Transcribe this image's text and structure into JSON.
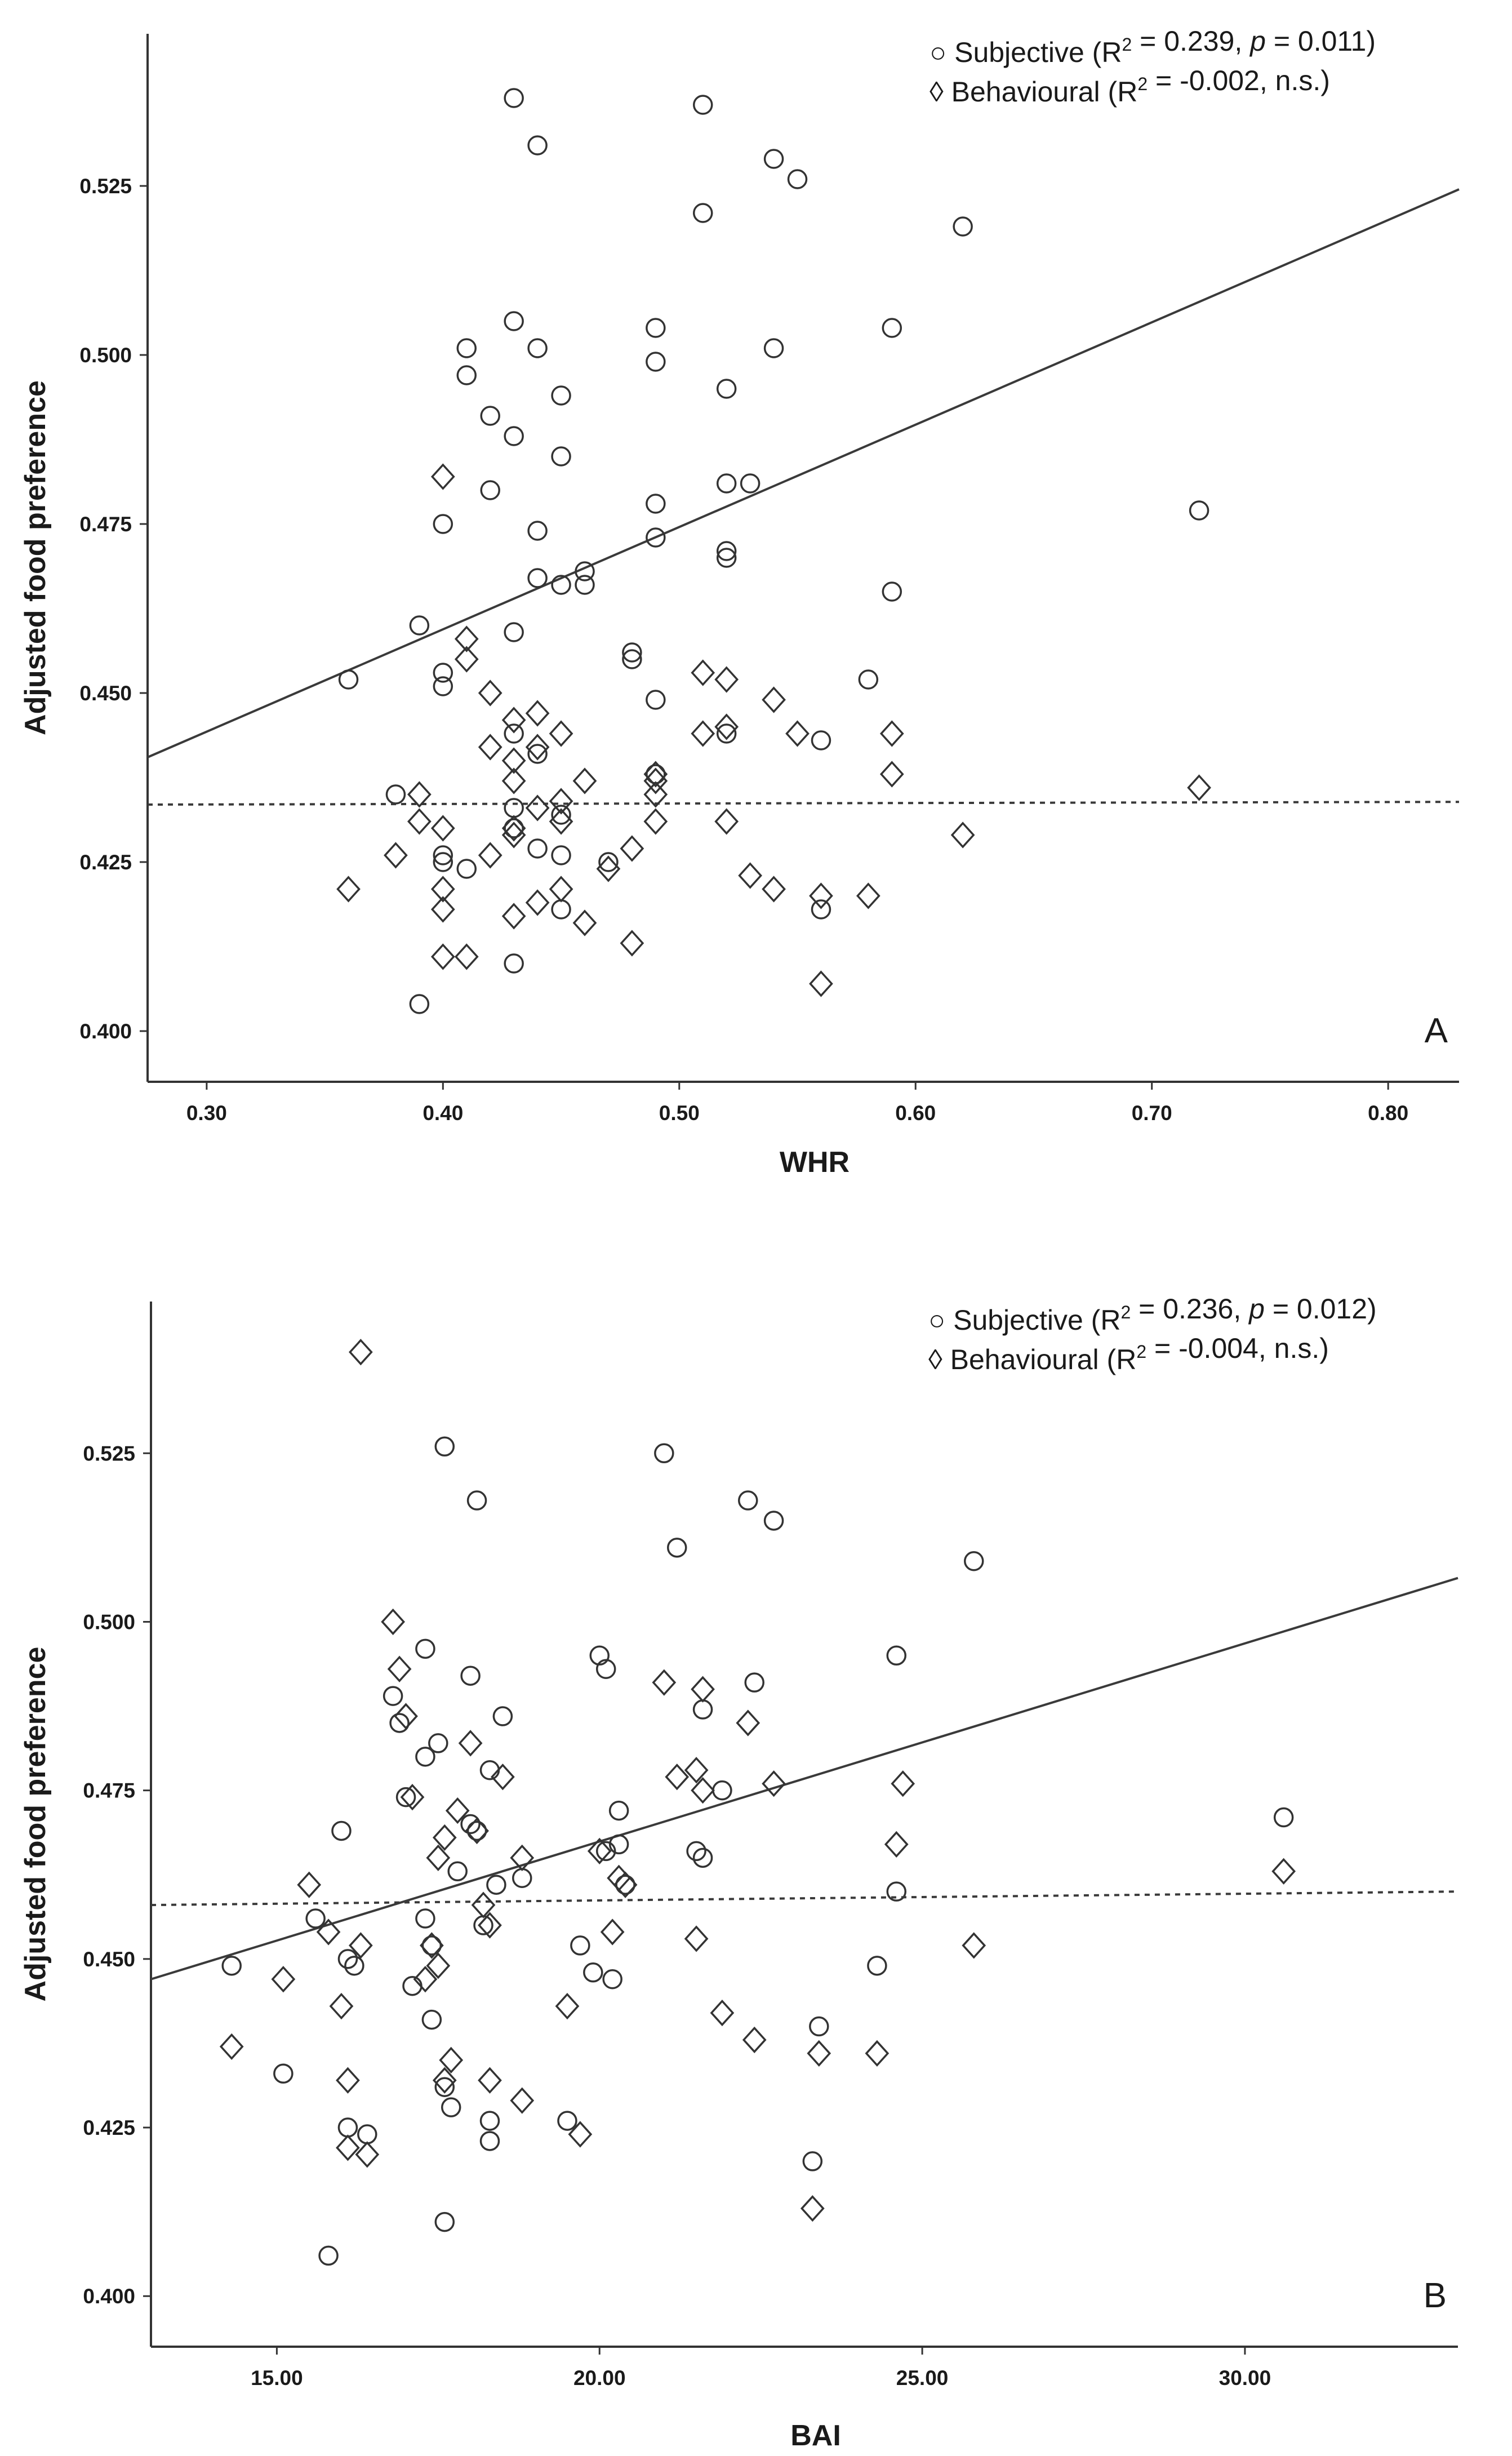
{
  "chart_data": [
    {
      "panel": "A",
      "type": "scatter",
      "xlabel": "WHR",
      "ylabel": "Adjusted food preference",
      "xlim": [
        0.275,
        0.83
      ],
      "ylim": [
        0.3925,
        0.5475
      ],
      "xticks": [
        "0.30",
        "0.40",
        "0.50",
        "0.60",
        "0.70",
        "0.80"
      ],
      "xtick_values": [
        0.3,
        0.4,
        0.5,
        0.6,
        0.7,
        0.8
      ],
      "yticks": [
        "0.400",
        "0.425",
        "0.450",
        "0.475",
        "0.500",
        "0.525"
      ],
      "ytick_values": [
        0.4,
        0.425,
        0.45,
        0.475,
        0.5,
        0.525
      ],
      "legend": {
        "position": "top-right",
        "entries": [
          {
            "marker": "○",
            "label": "Subjective (R",
            "sup": "2",
            "eq": " = 0.239, ",
            "italic": "p",
            "tail": " = 0.011)"
          },
          {
            "marker": "◊",
            "label": "Behavioural (R",
            "sup": "2",
            "eq": " = -0.002, n.s.)",
            "italic": "",
            "tail": ""
          }
        ]
      },
      "series": [
        {
          "name": "Subjective",
          "marker": "circle",
          "fit": {
            "style": "solid",
            "x": [
              0.275,
              0.83
            ],
            "y": [
              0.4405,
              0.5245
            ]
          },
          "points": [
            [
              0.36,
              0.452
            ],
            [
              0.38,
              0.435
            ],
            [
              0.39,
              0.46
            ],
            [
              0.39,
              0.404
            ],
            [
              0.4,
              0.453
            ],
            [
              0.4,
              0.451
            ],
            [
              0.4,
              0.426
            ],
            [
              0.4,
              0.425
            ],
            [
              0.4,
              0.475
            ],
            [
              0.41,
              0.501
            ],
            [
              0.41,
              0.497
            ],
            [
              0.41,
              0.424
            ],
            [
              0.42,
              0.491
            ],
            [
              0.42,
              0.48
            ],
            [
              0.43,
              0.538
            ],
            [
              0.43,
              0.505
            ],
            [
              0.43,
              0.488
            ],
            [
              0.43,
              0.459
            ],
            [
              0.43,
              0.444
            ],
            [
              0.43,
              0.433
            ],
            [
              0.43,
              0.43
            ],
            [
              0.43,
              0.41
            ],
            [
              0.44,
              0.531
            ],
            [
              0.44,
              0.501
            ],
            [
              0.44,
              0.474
            ],
            [
              0.44,
              0.467
            ],
            [
              0.44,
              0.441
            ],
            [
              0.44,
              0.427
            ],
            [
              0.45,
              0.494
            ],
            [
              0.45,
              0.485
            ],
            [
              0.45,
              0.466
            ],
            [
              0.45,
              0.432
            ],
            [
              0.45,
              0.426
            ],
            [
              0.45,
              0.418
            ],
            [
              0.46,
              0.468
            ],
            [
              0.46,
              0.466
            ],
            [
              0.47,
              0.425
            ],
            [
              0.48,
              0.456
            ],
            [
              0.48,
              0.455
            ],
            [
              0.49,
              0.504
            ],
            [
              0.49,
              0.499
            ],
            [
              0.49,
              0.478
            ],
            [
              0.49,
              0.473
            ],
            [
              0.49,
              0.449
            ],
            [
              0.49,
              0.438
            ],
            [
              0.51,
              0.537
            ],
            [
              0.51,
              0.521
            ],
            [
              0.52,
              0.495
            ],
            [
              0.52,
              0.481
            ],
            [
              0.52,
              0.471
            ],
            [
              0.52,
              0.47
            ],
            [
              0.52,
              0.444
            ],
            [
              0.53,
              0.481
            ],
            [
              0.54,
              0.529
            ],
            [
              0.54,
              0.501
            ],
            [
              0.55,
              0.526
            ],
            [
              0.56,
              0.443
            ],
            [
              0.56,
              0.418
            ],
            [
              0.58,
              0.452
            ],
            [
              0.59,
              0.504
            ],
            [
              0.59,
              0.465
            ],
            [
              0.62,
              0.519
            ],
            [
              0.72,
              0.477
            ]
          ]
        },
        {
          "name": "Behavioural",
          "marker": "diamond",
          "fit": {
            "style": "dashed",
            "x": [
              0.275,
              0.83
            ],
            "y": [
              0.4335,
              0.4339
            ]
          },
          "points": [
            [
              0.36,
              0.421
            ],
            [
              0.38,
              0.426
            ],
            [
              0.39,
              0.435
            ],
            [
              0.39,
              0.431
            ],
            [
              0.4,
              0.482
            ],
            [
              0.4,
              0.43
            ],
            [
              0.4,
              0.421
            ],
            [
              0.4,
              0.418
            ],
            [
              0.4,
              0.411
            ],
            [
              0.41,
              0.458
            ],
            [
              0.41,
              0.455
            ],
            [
              0.41,
              0.411
            ],
            [
              0.42,
              0.45
            ],
            [
              0.42,
              0.442
            ],
            [
              0.42,
              0.426
            ],
            [
              0.43,
              0.446
            ],
            [
              0.43,
              0.44
            ],
            [
              0.43,
              0.437
            ],
            [
              0.43,
              0.43
            ],
            [
              0.43,
              0.429
            ],
            [
              0.43,
              0.417
            ],
            [
              0.44,
              0.447
            ],
            [
              0.44,
              0.442
            ],
            [
              0.44,
              0.433
            ],
            [
              0.44,
              0.419
            ],
            [
              0.45,
              0.444
            ],
            [
              0.45,
              0.434
            ],
            [
              0.45,
              0.431
            ],
            [
              0.45,
              0.421
            ],
            [
              0.46,
              0.437
            ],
            [
              0.46,
              0.416
            ],
            [
              0.47,
              0.424
            ],
            [
              0.48,
              0.427
            ],
            [
              0.48,
              0.413
            ],
            [
              0.49,
              0.438
            ],
            [
              0.49,
              0.437
            ],
            [
              0.49,
              0.435
            ],
            [
              0.49,
              0.431
            ],
            [
              0.51,
              0.453
            ],
            [
              0.51,
              0.444
            ],
            [
              0.52,
              0.452
            ],
            [
              0.52,
              0.445
            ],
            [
              0.52,
              0.431
            ],
            [
              0.53,
              0.423
            ],
            [
              0.54,
              0.449
            ],
            [
              0.54,
              0.421
            ],
            [
              0.55,
              0.444
            ],
            [
              0.56,
              0.42
            ],
            [
              0.56,
              0.407
            ],
            [
              0.58,
              0.42
            ],
            [
              0.59,
              0.444
            ],
            [
              0.59,
              0.438
            ],
            [
              0.62,
              0.429
            ],
            [
              0.72,
              0.436
            ]
          ]
        }
      ]
    },
    {
      "panel": "B",
      "type": "scatter",
      "xlabel": "BAI",
      "ylabel": "Adjusted food preference",
      "xlim": [
        13.05,
        33.3
      ],
      "ylim": [
        0.3925,
        0.5475
      ],
      "xticks": [
        "15.00",
        "20.00",
        "25.00",
        "30.00"
      ],
      "xtick_values": [
        15,
        20,
        25,
        30
      ],
      "yticks": [
        "0.400",
        "0.425",
        "0.450",
        "0.475",
        "0.500",
        "0.525"
      ],
      "ytick_values": [
        0.4,
        0.425,
        0.45,
        0.475,
        0.5,
        0.525
      ],
      "legend": {
        "position": "top-right",
        "entries": [
          {
            "marker": "○",
            "label": "Subjective (R",
            "sup": "2",
            "eq": " = 0.236, ",
            "italic": "p",
            "tail": " = 0.012)"
          },
          {
            "marker": "◊",
            "label": "Behavioural (R",
            "sup": "2",
            "eq": " = -0.004, n.s.)",
            "italic": "",
            "tail": ""
          }
        ]
      },
      "series": [
        {
          "name": "Subjective",
          "marker": "circle",
          "fit": {
            "style": "solid",
            "x": [
              13.05,
              33.3
            ],
            "y": [
              0.447,
              0.5065
            ]
          },
          "points": [
            [
              14.3,
              0.449
            ],
            [
              15.1,
              0.433
            ],
            [
              15.6,
              0.456
            ],
            [
              15.8,
              0.406
            ],
            [
              16.0,
              0.469
            ],
            [
              16.1,
              0.45
            ],
            [
              16.1,
              0.425
            ],
            [
              16.2,
              0.449
            ],
            [
              16.4,
              0.424
            ],
            [
              16.8,
              0.489
            ],
            [
              16.9,
              0.485
            ],
            [
              17.0,
              0.474
            ],
            [
              17.1,
              0.446
            ],
            [
              17.3,
              0.496
            ],
            [
              17.3,
              0.48
            ],
            [
              17.3,
              0.456
            ],
            [
              17.4,
              0.452
            ],
            [
              17.4,
              0.441
            ],
            [
              17.5,
              0.482
            ],
            [
              17.6,
              0.526
            ],
            [
              17.6,
              0.411
            ],
            [
              17.6,
              0.431
            ],
            [
              17.7,
              0.428
            ],
            [
              17.8,
              0.463
            ],
            [
              18.0,
              0.492
            ],
            [
              18.0,
              0.47
            ],
            [
              18.1,
              0.518
            ],
            [
              18.1,
              0.469
            ],
            [
              18.2,
              0.455
            ],
            [
              18.3,
              0.478
            ],
            [
              18.3,
              0.426
            ],
            [
              18.3,
              0.423
            ],
            [
              18.4,
              0.461
            ],
            [
              18.5,
              0.486
            ],
            [
              18.8,
              0.462
            ],
            [
              19.5,
              0.426
            ],
            [
              19.7,
              0.452
            ],
            [
              19.9,
              0.448
            ],
            [
              20.0,
              0.495
            ],
            [
              20.1,
              0.493
            ],
            [
              20.1,
              0.466
            ],
            [
              20.2,
              0.447
            ],
            [
              20.3,
              0.472
            ],
            [
              20.3,
              0.467
            ],
            [
              20.4,
              0.461
            ],
            [
              21.0,
              0.525
            ],
            [
              21.2,
              0.511
            ],
            [
              21.5,
              0.466
            ],
            [
              21.6,
              0.465
            ],
            [
              21.6,
              0.487
            ],
            [
              21.9,
              0.475
            ],
            [
              22.3,
              0.518
            ],
            [
              22.4,
              0.491
            ],
            [
              22.7,
              0.515
            ],
            [
              23.3,
              0.42
            ],
            [
              23.4,
              0.44
            ],
            [
              24.3,
              0.449
            ],
            [
              24.6,
              0.495
            ],
            [
              24.6,
              0.46
            ],
            [
              25.8,
              0.509
            ],
            [
              30.6,
              0.471
            ]
          ]
        },
        {
          "name": "Behavioural",
          "marker": "diamond",
          "fit": {
            "style": "dashed",
            "x": [
              13.05,
              33.3
            ],
            "y": [
              0.458,
              0.46
            ]
          },
          "points": [
            [
              14.3,
              0.437
            ],
            [
              15.1,
              0.447
            ],
            [
              15.5,
              0.461
            ],
            [
              15.8,
              0.454
            ],
            [
              16.0,
              0.443
            ],
            [
              16.1,
              0.432
            ],
            [
              16.1,
              0.422
            ],
            [
              16.3,
              0.54
            ],
            [
              16.3,
              0.452
            ],
            [
              16.4,
              0.421
            ],
            [
              16.8,
              0.5
            ],
            [
              16.9,
              0.493
            ],
            [
              17.0,
              0.486
            ],
            [
              17.1,
              0.474
            ],
            [
              17.3,
              0.447
            ],
            [
              17.4,
              0.452
            ],
            [
              17.5,
              0.449
            ],
            [
              17.5,
              0.465
            ],
            [
              17.6,
              0.468
            ],
            [
              17.6,
              0.432
            ],
            [
              17.7,
              0.435
            ],
            [
              17.8,
              0.472
            ],
            [
              18.0,
              0.482
            ],
            [
              18.1,
              0.469
            ],
            [
              18.2,
              0.458
            ],
            [
              18.3,
              0.455
            ],
            [
              18.3,
              0.432
            ],
            [
              18.5,
              0.477
            ],
            [
              18.8,
              0.465
            ],
            [
              18.8,
              0.429
            ],
            [
              19.5,
              0.443
            ],
            [
              19.7,
              0.424
            ],
            [
              20.0,
              0.466
            ],
            [
              20.2,
              0.454
            ],
            [
              20.3,
              0.462
            ],
            [
              20.4,
              0.461
            ],
            [
              21.0,
              0.491
            ],
            [
              21.2,
              0.477
            ],
            [
              21.5,
              0.478
            ],
            [
              21.5,
              0.453
            ],
            [
              21.6,
              0.49
            ],
            [
              21.6,
              0.475
            ],
            [
              21.9,
              0.442
            ],
            [
              22.3,
              0.485
            ],
            [
              22.4,
              0.438
            ],
            [
              22.7,
              0.476
            ],
            [
              23.3,
              0.413
            ],
            [
              23.4,
              0.436
            ],
            [
              24.3,
              0.436
            ],
            [
              24.6,
              0.467
            ],
            [
              24.7,
              0.476
            ],
            [
              25.8,
              0.452
            ],
            [
              30.6,
              0.463
            ]
          ]
        }
      ]
    }
  ]
}
